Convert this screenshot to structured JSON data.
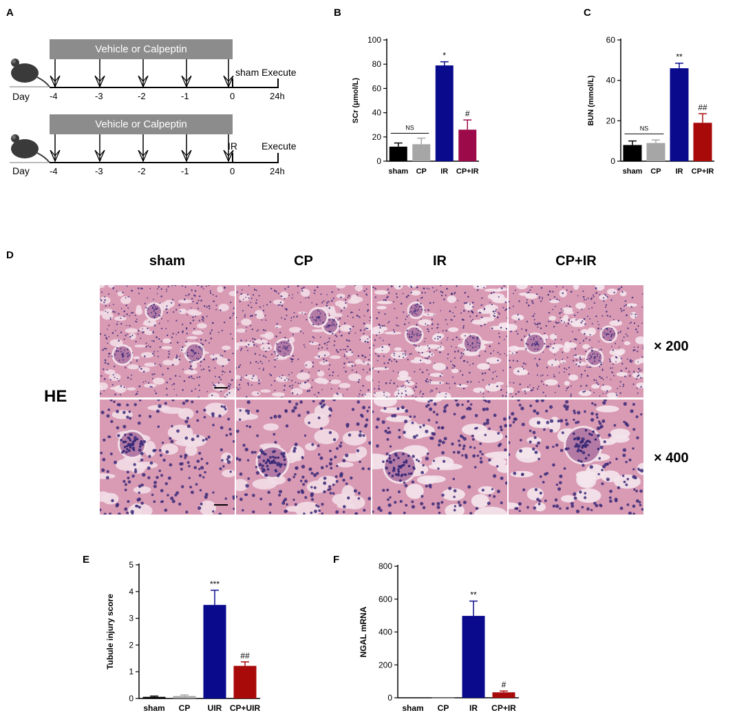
{
  "panels": {
    "A": "A",
    "B": "B",
    "C": "C",
    "D": "D",
    "E": "E",
    "F": "F"
  },
  "timeline": {
    "bar_label": "Vehicle or  Calpeptin",
    "day_label": "Day",
    "ticks": [
      "-4",
      "-3",
      "-2",
      "-1",
      "0",
      "24h"
    ],
    "row1_event": "sham",
    "row2_event": "IR",
    "execute": "Execute",
    "colors": {
      "bar": "#8c8c8c",
      "mouse": "#3a3a3a"
    }
  },
  "histology": {
    "columns": [
      "sham",
      "CP",
      "IR",
      "CP+IR"
    ],
    "stain": "HE",
    "magnifications": [
      "× 200",
      "× 400"
    ],
    "colors": {
      "tissue_base": "#d99ab4",
      "nuclei": "#3b2a78",
      "lumen": "#f1dde6"
    }
  },
  "chart_data": [
    {
      "id": "B",
      "type": "bar",
      "ylabel": "SCr (μmol/L)",
      "ylim": [
        0,
        100
      ],
      "yticks": [
        0,
        20,
        40,
        60,
        80,
        100
      ],
      "categories": [
        "sham",
        "CP",
        "IR",
        "CP+IR"
      ],
      "values": [
        12,
        14,
        79,
        26
      ],
      "errors": [
        3,
        5,
        3,
        8
      ],
      "colors": [
        "#000000",
        "#a6a6a6",
        "#0a0a8c",
        "#9c0a4a"
      ],
      "annotations": [
        "",
        "",
        "*",
        "#"
      ],
      "bracket": {
        "label": "NS",
        "from": 0,
        "to": 1,
        "y": 23
      }
    },
    {
      "id": "C",
      "type": "bar",
      "ylabel": "BUN (mmol/L)",
      "ylim": [
        0,
        60
      ],
      "yticks": [
        0,
        20,
        40,
        60
      ],
      "categories": [
        "sham",
        "CP",
        "IR",
        "CP+IR"
      ],
      "values": [
        8,
        9,
        46,
        19
      ],
      "errors": [
        2,
        1.5,
        2.5,
        4.5
      ],
      "colors": [
        "#000000",
        "#a6a6a6",
        "#0a0a8c",
        "#a80a0a"
      ],
      "annotations": [
        "",
        "",
        "**",
        "##"
      ],
      "bracket": {
        "label": "NS",
        "from": 0,
        "to": 1,
        "y": 13.5
      }
    },
    {
      "id": "E",
      "type": "bar",
      "ylabel": "Tubule injury score",
      "ylim": [
        0,
        5
      ],
      "yticks": [
        0,
        1,
        2,
        3,
        4,
        5
      ],
      "categories": [
        "sham",
        "CP",
        "UIR",
        "CP+UIR"
      ],
      "values": [
        0.06,
        0.09,
        3.5,
        1.22
      ],
      "errors": [
        0.03,
        0.04,
        0.55,
        0.15
      ],
      "colors": [
        "#000000",
        "#a6a6a6",
        "#0a0a8c",
        "#a80a0a"
      ],
      "annotations": [
        "",
        "",
        "***",
        "##"
      ]
    },
    {
      "id": "F",
      "type": "bar",
      "ylabel": "NGAL mRNA",
      "ylim": [
        0,
        800
      ],
      "yticks": [
        0,
        200,
        400,
        600,
        800
      ],
      "categories": [
        "sham",
        "CP",
        "IR",
        "CP+IR"
      ],
      "values": [
        1,
        1,
        498,
        33
      ],
      "errors": [
        0,
        0,
        90,
        8
      ],
      "colors": [
        "#000000",
        "#a6a6a6",
        "#0a0a8c",
        "#a80a0a"
      ],
      "annotations": [
        "",
        "",
        "**",
        "#"
      ]
    }
  ]
}
